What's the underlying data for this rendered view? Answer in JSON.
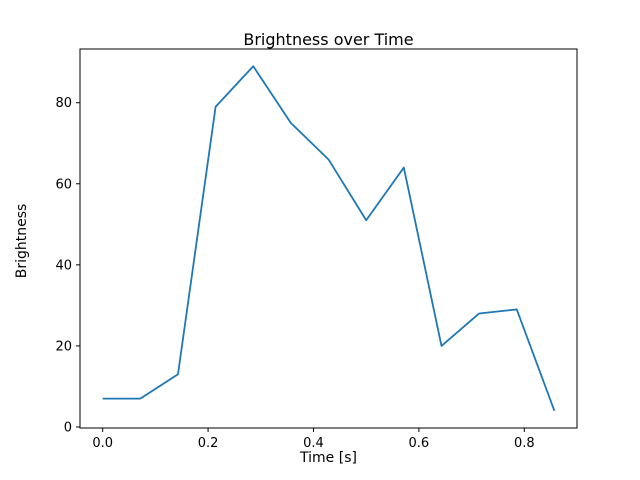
{
  "chart_data": {
    "type": "line",
    "title": "Brightness over Time",
    "xlabel": "Time [s]",
    "ylabel": "Brightness",
    "x": [
      0.0,
      0.0714,
      0.1429,
      0.2143,
      0.2857,
      0.3571,
      0.4286,
      0.5,
      0.5714,
      0.6429,
      0.7143,
      0.7857,
      0.8571
    ],
    "y": [
      7,
      7,
      13,
      79,
      89,
      75,
      66,
      51,
      64,
      20,
      28,
      29,
      4
    ],
    "xlim": [
      -0.043,
      0.9
    ],
    "ylim": [
      -0.25,
      93.25
    ],
    "xticks": [
      0.0,
      0.2,
      0.4,
      0.6,
      0.8
    ],
    "xtick_labels": [
      "0.0",
      "0.2",
      "0.4",
      "0.6",
      "0.8"
    ],
    "yticks": [
      0,
      20,
      40,
      60,
      80
    ],
    "ytick_labels": [
      "0",
      "20",
      "40",
      "60",
      "80"
    ],
    "line_color": "#1f77b4",
    "axis_color": "#000000",
    "grid": false,
    "legend_position": "none"
  }
}
